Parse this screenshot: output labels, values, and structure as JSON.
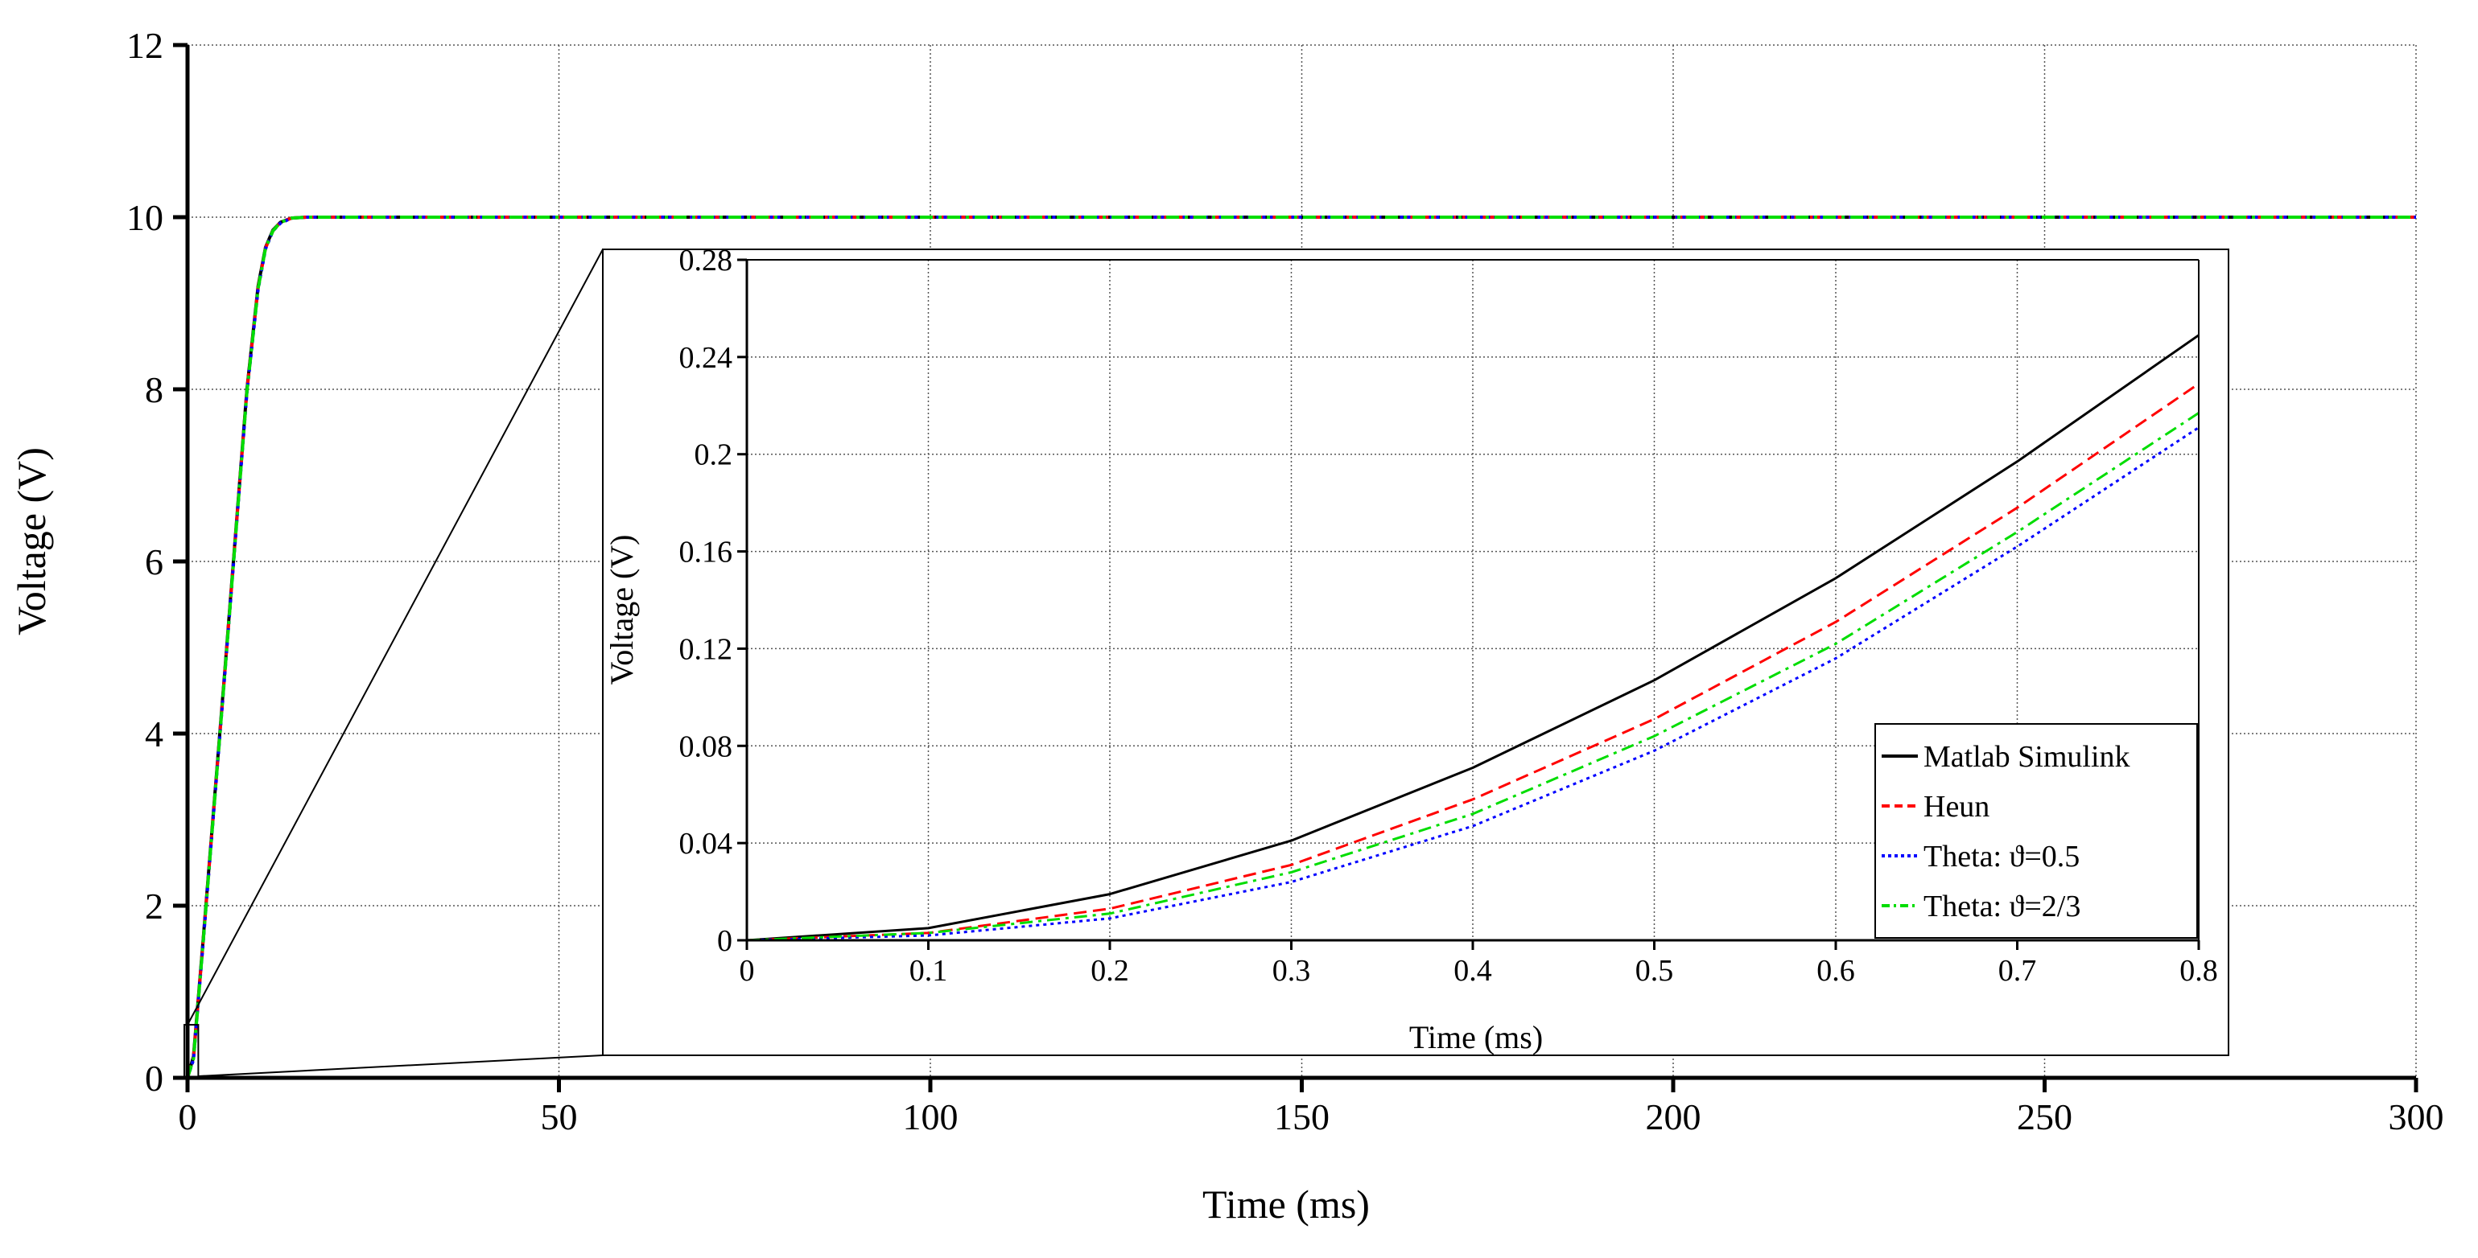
{
  "chart_data": [
    {
      "id": "main",
      "type": "line",
      "title": "",
      "xlabel": "Time (ms)",
      "ylabel": "Voltage (V)",
      "xlim": [
        0,
        300
      ],
      "ylim": [
        0,
        12
      ],
      "xticks": [
        0,
        50,
        100,
        150,
        200,
        250,
        300
      ],
      "yticks": [
        0,
        2,
        4,
        6,
        8,
        10,
        12
      ],
      "xtick_labels": [
        "0",
        "50",
        "100",
        "150",
        "200",
        "250",
        "300"
      ],
      "ytick_labels": [
        "0",
        "2",
        "4",
        "6",
        "8",
        "10",
        "12"
      ],
      "grid": true,
      "series": [
        {
          "name": "Matlab Simulink",
          "color": "#000000",
          "dash": "solid",
          "x": [
            0,
            0.8,
            2,
            5,
            8,
            9.5,
            10.5,
            11.5,
            12.5,
            14,
            16,
            20,
            300
          ],
          "y": [
            0,
            0.25,
            1.5,
            4.7,
            8.0,
            9.2,
            9.65,
            9.85,
            9.94,
            9.99,
            10.0,
            10.0,
            10.0
          ]
        },
        {
          "name": "Heun",
          "color": "#ff0000",
          "dash": "dashed",
          "x": [
            0,
            0.8,
            2,
            5,
            8,
            9.5,
            10.5,
            11.5,
            12.5,
            14,
            16,
            20,
            300
          ],
          "y": [
            0,
            0.23,
            1.48,
            4.68,
            7.98,
            9.18,
            9.64,
            9.84,
            9.94,
            9.99,
            10.0,
            10.0,
            10.0
          ]
        },
        {
          "name": "Theta: ϑ=0.5",
          "color": "#0000ff",
          "dash": "dotted",
          "x": [
            0,
            0.8,
            2,
            5,
            8,
            9.5,
            10.5,
            11.5,
            12.5,
            14,
            16,
            20,
            300
          ],
          "y": [
            0,
            0.21,
            1.46,
            4.66,
            7.96,
            9.16,
            9.63,
            9.84,
            9.93,
            9.99,
            10.0,
            10.0,
            10.0
          ]
        },
        {
          "name": "Theta: ϑ=2/3",
          "color": "#00dd00",
          "dash": "dashdot",
          "x": [
            0,
            0.8,
            2,
            5,
            8,
            9.5,
            10.5,
            11.5,
            12.5,
            14,
            16,
            20,
            300
          ],
          "y": [
            0,
            0.22,
            1.47,
            4.67,
            7.97,
            9.17,
            9.64,
            9.84,
            9.94,
            9.99,
            10.0,
            10.0,
            10.0
          ]
        }
      ]
    },
    {
      "id": "inset",
      "type": "line",
      "title": "",
      "xlabel": "Time (ms)",
      "ylabel": "Voltage (V)",
      "xlim": [
        0,
        0.8
      ],
      "ylim": [
        0,
        0.28
      ],
      "xticks": [
        0,
        0.1,
        0.2,
        0.3,
        0.4,
        0.5,
        0.6,
        0.7,
        0.8
      ],
      "yticks": [
        0,
        0.04,
        0.08,
        0.12,
        0.16,
        0.2,
        0.24,
        0.28
      ],
      "xtick_labels": [
        "0",
        "0.1",
        "0.2",
        "0.3",
        "0.4",
        "0.5",
        "0.6",
        "0.7",
        "0.8"
      ],
      "ytick_labels": [
        "0",
        "0.04",
        "0.08",
        "0.12",
        "0.16",
        "0.2",
        "0.24",
        "0.28"
      ],
      "grid": true,
      "legend_position": "lower-right",
      "series": [
        {
          "name": "Matlab Simulink",
          "color": "#000000",
          "dash": "solid",
          "x": [
            0,
            0.1,
            0.2,
            0.3,
            0.4,
            0.5,
            0.6,
            0.7,
            0.8
          ],
          "y": [
            0,
            0.005,
            0.019,
            0.041,
            0.071,
            0.107,
            0.149,
            0.197,
            0.249
          ]
        },
        {
          "name": "Heun",
          "color": "#ff0000",
          "dash": "dashed",
          "x": [
            0,
            0.1,
            0.2,
            0.3,
            0.4,
            0.5,
            0.6,
            0.7,
            0.8
          ],
          "y": [
            0,
            0.003,
            0.013,
            0.031,
            0.058,
            0.091,
            0.131,
            0.178,
            0.229
          ]
        },
        {
          "name": "Theta: ϑ=0.5",
          "color": "#0000ff",
          "dash": "dotted",
          "x": [
            0,
            0.1,
            0.2,
            0.3,
            0.4,
            0.5,
            0.6,
            0.7,
            0.8
          ],
          "y": [
            0,
            0.002,
            0.009,
            0.024,
            0.047,
            0.078,
            0.116,
            0.162,
            0.211
          ]
        },
        {
          "name": "Theta: ϑ=2/3",
          "color": "#00dd00",
          "dash": "dashdot",
          "x": [
            0,
            0.1,
            0.2,
            0.3,
            0.4,
            0.5,
            0.6,
            0.7,
            0.8
          ],
          "y": [
            0,
            0.003,
            0.011,
            0.028,
            0.052,
            0.084,
            0.122,
            0.168,
            0.217
          ]
        }
      ]
    }
  ]
}
